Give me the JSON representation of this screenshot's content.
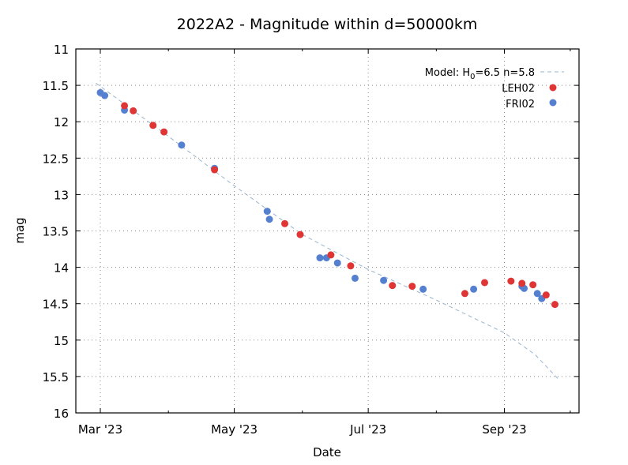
{
  "chart_data": {
    "type": "scatter",
    "title": "2022A2 - Magnitude within d=50000km",
    "xlabel": "Date",
    "ylabel": "mag",
    "xlim": [
      "2023-02-20",
      "2023-10-15"
    ],
    "ylim": [
      16,
      11
    ],
    "y_inverted": true,
    "grid": true,
    "legend_position": "top-right",
    "x_ticks": [
      {
        "date": "2023-03-01",
        "label": "Mar '23"
      },
      {
        "date": "2023-05-01",
        "label": "May '23"
      },
      {
        "date": "2023-07-01",
        "label": "Jul '23"
      },
      {
        "date": "2023-09-01",
        "label": "Sep '23"
      }
    ],
    "x_minor_ticks": [
      "2023-04-01",
      "2023-06-01",
      "2023-08-01",
      "2023-10-01"
    ],
    "y_ticks": [
      "11",
      "11.5",
      "12",
      "12.5",
      "13",
      "13.5",
      "14",
      "14.5",
      "15",
      "15.5",
      "16"
    ],
    "model": {
      "label_prefix": "Model: H",
      "label_sub": "0",
      "label_suffix": "=6.5 n=5.8",
      "color": "#9ab4cc",
      "points": [
        [
          "2023-02-27",
          11.47
        ],
        [
          "2023-04-01",
          12.2
        ],
        [
          "2023-05-01",
          12.88
        ],
        [
          "2023-06-01",
          13.55
        ],
        [
          "2023-07-01",
          14.03
        ],
        [
          "2023-08-01",
          14.45
        ],
        [
          "2023-09-01",
          14.9
        ],
        [
          "2023-09-15",
          15.2
        ],
        [
          "2023-09-26",
          15.55
        ]
      ]
    },
    "series": [
      {
        "name": "LEH02",
        "color": "#e03535",
        "points": [
          [
            "2023-03-12",
            11.78
          ],
          [
            "2023-03-16",
            11.85
          ],
          [
            "2023-03-25",
            12.05
          ],
          [
            "2023-03-30",
            12.14
          ],
          [
            "2023-04-22",
            12.66
          ],
          [
            "2023-05-24",
            13.4
          ],
          [
            "2023-05-31",
            13.55
          ],
          [
            "2023-06-14",
            13.83
          ],
          [
            "2023-06-23",
            13.98
          ],
          [
            "2023-07-12",
            14.25
          ],
          [
            "2023-07-21",
            14.26
          ],
          [
            "2023-08-14",
            14.36
          ],
          [
            "2023-08-23",
            14.21
          ],
          [
            "2023-09-04",
            14.19
          ],
          [
            "2023-09-09",
            14.22
          ],
          [
            "2023-09-14",
            14.24
          ],
          [
            "2023-09-20",
            14.38
          ],
          [
            "2023-09-24",
            14.51
          ]
        ]
      },
      {
        "name": "FRI02",
        "color": "#5580d0",
        "points": [
          [
            "2023-03-01",
            11.6
          ],
          [
            "2023-03-03",
            11.64
          ],
          [
            "2023-03-12",
            11.84
          ],
          [
            "2023-04-07",
            12.32
          ],
          [
            "2023-04-22",
            12.64
          ],
          [
            "2023-05-16",
            13.23
          ],
          [
            "2023-05-17",
            13.34
          ],
          [
            "2023-06-09",
            13.87
          ],
          [
            "2023-06-12",
            13.87
          ],
          [
            "2023-06-17",
            13.94
          ],
          [
            "2023-06-25",
            14.15
          ],
          [
            "2023-07-08",
            14.18
          ],
          [
            "2023-07-26",
            14.3
          ],
          [
            "2023-08-18",
            14.3
          ],
          [
            "2023-09-09",
            14.26
          ],
          [
            "2023-09-10",
            14.29
          ],
          [
            "2023-09-16",
            14.36
          ],
          [
            "2023-09-18",
            14.43
          ]
        ]
      }
    ]
  }
}
